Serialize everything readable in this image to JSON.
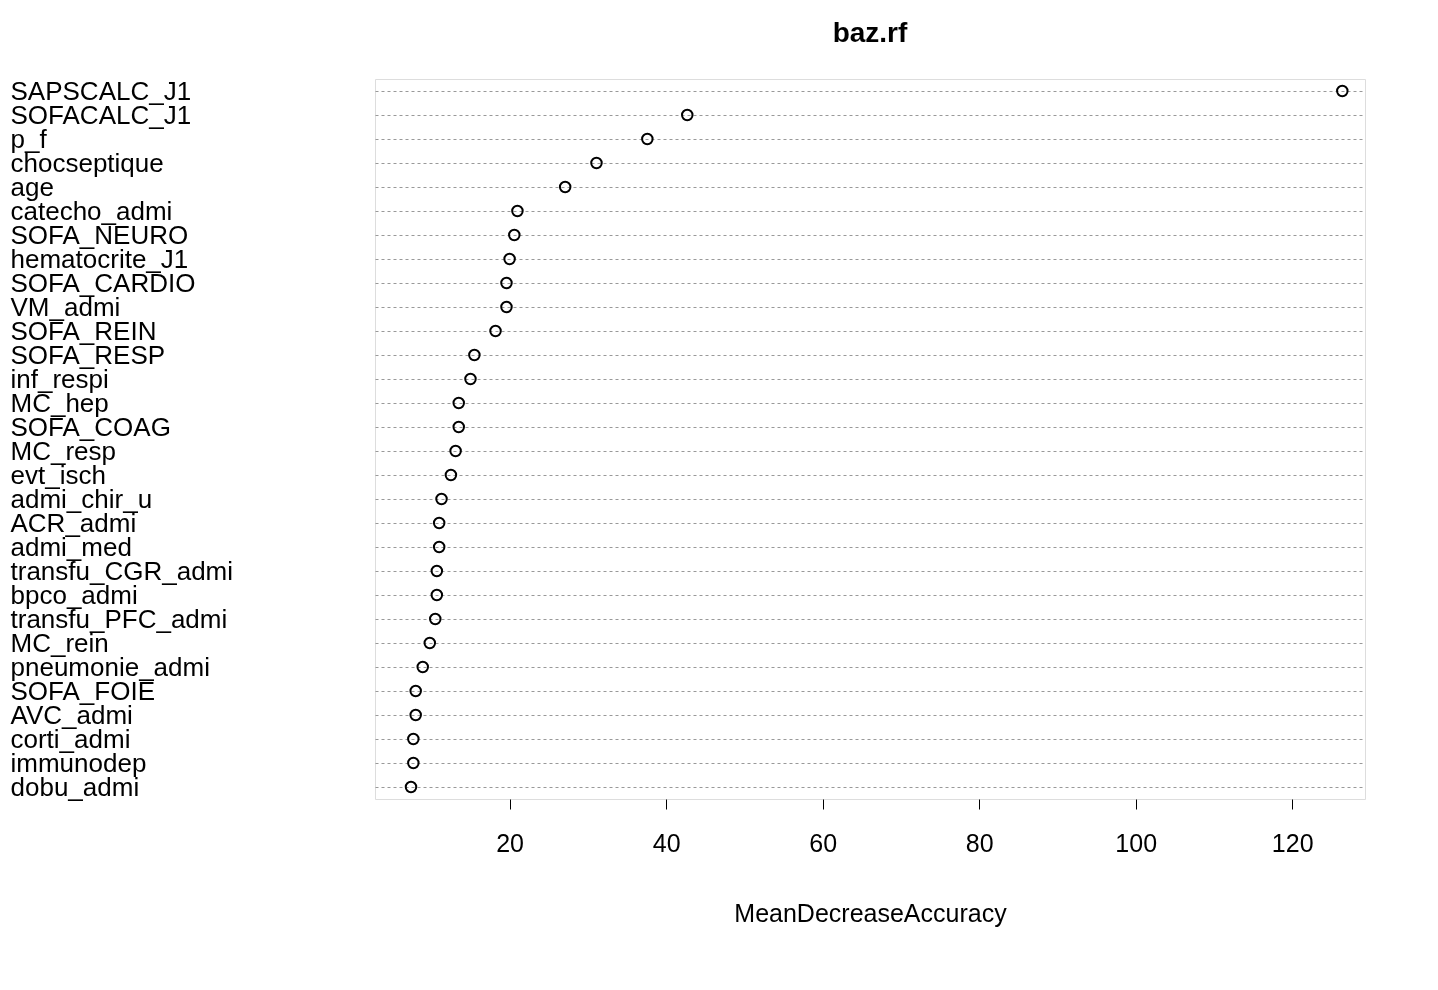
{
  "chart_data": {
    "type": "scatter",
    "title": "baz.rf",
    "xlabel": "MeanDecreaseAccuracy",
    "orientation": "horizontal",
    "categories": [
      "SAPSCALC_J1",
      "SOFACALC_J1",
      "p_f",
      "chocseptique",
      "age",
      "catecho_admi",
      "SOFA_NEURO",
      "hematocrite_J1",
      "SOFA_CARDIO",
      "VM_admi",
      "SOFA_REIN",
      "SOFA_RESP",
      "inf_respi",
      "MC_hep",
      "SOFA_COAG",
      "MC_resp",
      "evt_isch",
      "admi_chir_u",
      "ACR_admi",
      "admi_med",
      "transfu_CGR_admi",
      "bpco_admi",
      "transfu_PFC_admi",
      "MC_rein",
      "pneumonie_admi",
      "SOFA_FOIE",
      "AVC_admi",
      "corti_admi",
      "immunodep",
      "dobu_admi"
    ],
    "series": [
      {
        "color": "#000000",
        "values": [
          126.4,
          42.7,
          37.6,
          31.1,
          27.1,
          21.0,
          20.6,
          20.0,
          19.6,
          19.6,
          18.2,
          15.5,
          15.0,
          13.5,
          13.5,
          13.1,
          12.5,
          11.3,
          11.0,
          11.0,
          10.7,
          10.7,
          10.5,
          9.8,
          8.9,
          8.0,
          8.0,
          7.7,
          7.7,
          7.4
        ]
      }
    ],
    "xlim": [
      2.8,
      129.3
    ],
    "xticks": [
      20,
      40,
      60,
      80,
      100,
      120
    ],
    "grid": "y",
    "marker": "circle"
  }
}
